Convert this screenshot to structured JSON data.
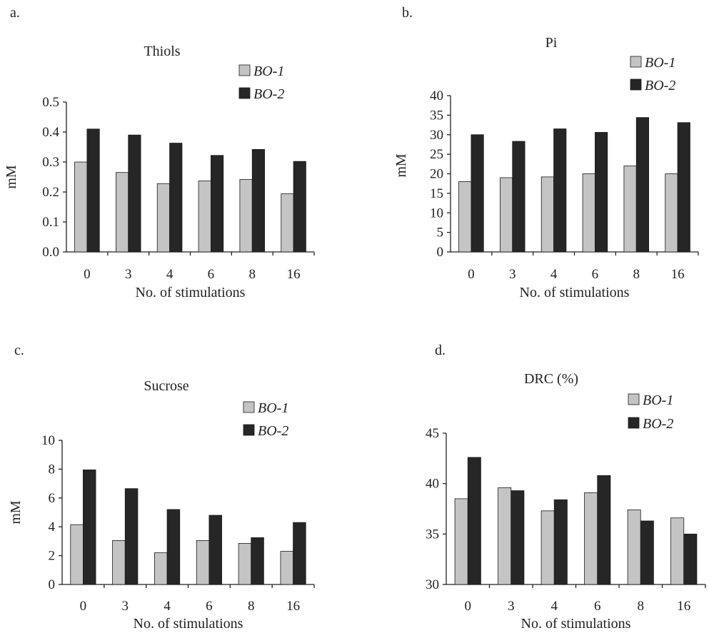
{
  "chart_data": [
    {
      "panel": "a.",
      "type": "bar",
      "title": "Thiols",
      "xlabel": "No. of stimulations",
      "ylabel": "mM",
      "categories": [
        "0",
        "3",
        "4",
        "6",
        "8",
        "16"
      ],
      "series": [
        {
          "name": "BO-1",
          "color": "#c4c4c4",
          "values": [
            0.3,
            0.265,
            0.228,
            0.237,
            0.242,
            0.194
          ]
        },
        {
          "name": "BO-2",
          "color": "#262626",
          "values": [
            0.41,
            0.39,
            0.363,
            0.322,
            0.342,
            0.302
          ]
        }
      ],
      "ylim": [
        0,
        0.5
      ],
      "yticks": [
        0,
        0.1,
        0.2,
        0.3,
        0.4,
        0.5
      ],
      "ytick_labels": [
        "0.0",
        "0.1",
        "0.2",
        "0.3",
        "0.4",
        "0.5"
      ],
      "legend_position": "top-right",
      "grid": false
    },
    {
      "panel": "b.",
      "type": "bar",
      "title": "Pi",
      "xlabel": "No. of stimulations",
      "ylabel": "mM",
      "categories": [
        "0",
        "3",
        "4",
        "6",
        "8",
        "16"
      ],
      "series": [
        {
          "name": "BO-1",
          "color": "#c4c4c4",
          "values": [
            18,
            19,
            19.2,
            20,
            22,
            20
          ]
        },
        {
          "name": "BO-2",
          "color": "#262626",
          "values": [
            30,
            28.3,
            31.5,
            30.6,
            34.4,
            33.1
          ]
        }
      ],
      "ylim": [
        0,
        40
      ],
      "yticks": [
        0,
        5,
        10,
        15,
        20,
        25,
        30,
        35,
        40
      ],
      "ytick_labels": [
        "0",
        "5",
        "10",
        "15",
        "20",
        "25",
        "30",
        "35",
        "40"
      ],
      "legend_position": "top-right",
      "grid": false
    },
    {
      "panel": "c.",
      "type": "bar",
      "title": "Sucrose",
      "xlabel": "No. of stimulations",
      "ylabel": "mM",
      "categories": [
        "0",
        "3",
        "4",
        "6",
        "8",
        "16"
      ],
      "series": [
        {
          "name": "BO-1",
          "color": "#c4c4c4",
          "values": [
            4.15,
            3.05,
            2.2,
            3.05,
            2.85,
            2.3
          ]
        },
        {
          "name": "BO-2",
          "color": "#262626",
          "values": [
            7.95,
            6.65,
            5.2,
            4.8,
            3.25,
            4.3
          ]
        }
      ],
      "ylim": [
        0,
        10
      ],
      "yticks": [
        0,
        2,
        4,
        6,
        8,
        10
      ],
      "ytick_labels": [
        "0",
        "2",
        "4",
        "6",
        "8",
        "10"
      ],
      "legend_position": "top-right",
      "grid": false
    },
    {
      "panel": "d.",
      "type": "bar",
      "title": "DRC (%)",
      "xlabel": "No. of stimulations",
      "ylabel": "",
      "categories": [
        "0",
        "3",
        "4",
        "6",
        "8",
        "16"
      ],
      "series": [
        {
          "name": "BO-1",
          "color": "#c4c4c4",
          "values": [
            38.5,
            39.6,
            37.3,
            39.1,
            37.4,
            36.6
          ]
        },
        {
          "name": "BO-2",
          "color": "#262626",
          "values": [
            42.6,
            39.3,
            38.4,
            40.8,
            36.3,
            35
          ]
        }
      ],
      "ylim": [
        30,
        45
      ],
      "yticks": [
        30,
        35,
        40,
        45
      ],
      "ytick_labels": [
        "30",
        "35",
        "40",
        "45"
      ],
      "legend_position": "top-right",
      "grid": false
    }
  ]
}
